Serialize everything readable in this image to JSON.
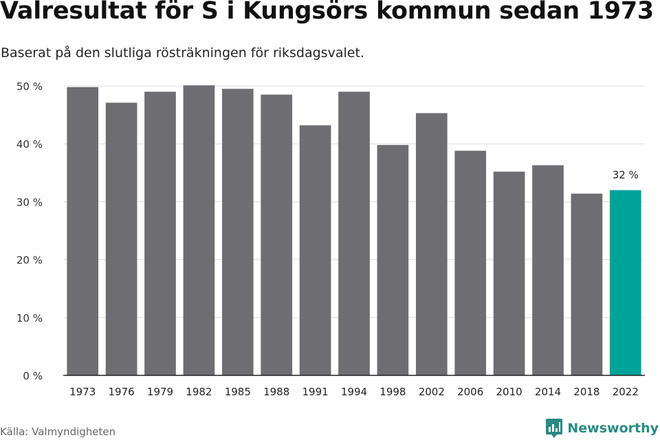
{
  "title": "Valresultat för S i Kungsörs kommun sedan 1973",
  "subtitle": "Baserat på den slutliga rösträkningen för riksdagsvalet.",
  "source": "Källa: Valmyndigheten",
  "brand": {
    "name": "Newsworthy",
    "icon": "newsworthy-logo-icon"
  },
  "colors": {
    "bar": "#6e6d72",
    "highlight": "#00a398",
    "grid": "#dddddd",
    "axis": "#222222",
    "brand": "#2a8a84"
  },
  "chart_data": {
    "type": "bar",
    "title": "Valresultat för S i Kungsörs kommun sedan 1973",
    "subtitle": "Baserat på den slutliga rösträkningen för riksdagsvalet.",
    "categories": [
      "1973",
      "1976",
      "1979",
      "1982",
      "1985",
      "1988",
      "1991",
      "1994",
      "1998",
      "2002",
      "2006",
      "2010",
      "2014",
      "2018",
      "2022"
    ],
    "values": [
      49.8,
      47.1,
      49.0,
      50.1,
      49.5,
      48.5,
      43.2,
      49.0,
      39.8,
      45.3,
      38.8,
      35.2,
      36.3,
      31.4,
      32.0
    ],
    "ylim": [
      0,
      50
    ],
    "yticks": [
      0,
      10,
      20,
      30,
      40,
      50
    ],
    "ytick_labels": [
      "0 %",
      "10 %",
      "20 %",
      "30 %",
      "40 %",
      "50 %"
    ],
    "grid": true,
    "highlight_index": 14,
    "data_labels": [
      {
        "index": 14,
        "text": "32 %"
      }
    ]
  }
}
